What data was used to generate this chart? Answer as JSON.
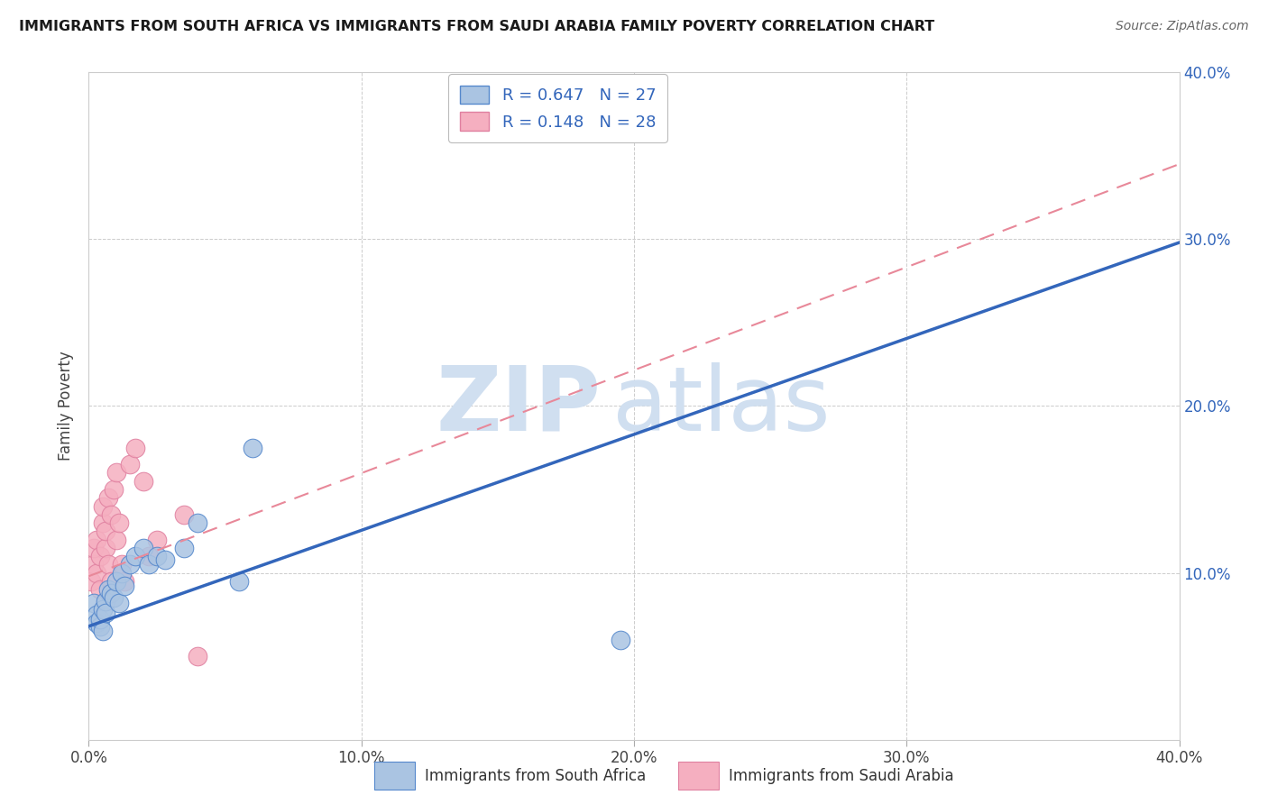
{
  "title": "IMMIGRANTS FROM SOUTH AFRICA VS IMMIGRANTS FROM SAUDI ARABIA FAMILY POVERTY CORRELATION CHART",
  "source": "Source: ZipAtlas.com",
  "ylabel": "Family Poverty",
  "xlim": [
    0.0,
    0.4
  ],
  "ylim": [
    0.0,
    0.4
  ],
  "xticks": [
    0.0,
    0.1,
    0.2,
    0.3,
    0.4
  ],
  "yticks": [
    0.0,
    0.1,
    0.2,
    0.3,
    0.4
  ],
  "xticklabels": [
    "0.0%",
    "10.0%",
    "20.0%",
    "30.0%",
    "40.0%"
  ],
  "yticklabels_right": [
    "",
    "10.0%",
    "20.0%",
    "30.0%",
    "40.0%"
  ],
  "series1_label": "Immigrants from South Africa",
  "series2_label": "Immigrants from Saudi Arabia",
  "series1_R": 0.647,
  "series1_N": 27,
  "series2_R": 0.148,
  "series2_N": 28,
  "series1_color": "#aac4e2",
  "series2_color": "#f5afc0",
  "series1_edge_color": "#5588cc",
  "series2_edge_color": "#e080a0",
  "series1_line_color": "#3366bb",
  "series2_line_color": "#e88899",
  "watermark_zip": "ZIP",
  "watermark_atlas": "atlas",
  "watermark_color": "#d0dff0",
  "series1_x": [
    0.002,
    0.003,
    0.003,
    0.004,
    0.004,
    0.005,
    0.005,
    0.006,
    0.006,
    0.007,
    0.008,
    0.009,
    0.01,
    0.011,
    0.012,
    0.013,
    0.015,
    0.017,
    0.02,
    0.022,
    0.025,
    0.028,
    0.035,
    0.04,
    0.055,
    0.06,
    0.195
  ],
  "series1_y": [
    0.082,
    0.075,
    0.07,
    0.068,
    0.072,
    0.078,
    0.065,
    0.083,
    0.076,
    0.09,
    0.088,
    0.085,
    0.095,
    0.082,
    0.1,
    0.092,
    0.105,
    0.11,
    0.115,
    0.105,
    0.11,
    0.108,
    0.115,
    0.13,
    0.095,
    0.175,
    0.06
  ],
  "series2_x": [
    0.001,
    0.002,
    0.002,
    0.003,
    0.003,
    0.004,
    0.004,
    0.005,
    0.005,
    0.006,
    0.006,
    0.007,
    0.007,
    0.008,
    0.008,
    0.009,
    0.01,
    0.01,
    0.011,
    0.012,
    0.013,
    0.015,
    0.017,
    0.02,
    0.022,
    0.025,
    0.035,
    0.04
  ],
  "series2_y": [
    0.095,
    0.105,
    0.115,
    0.1,
    0.12,
    0.09,
    0.11,
    0.13,
    0.14,
    0.115,
    0.125,
    0.145,
    0.105,
    0.135,
    0.095,
    0.15,
    0.16,
    0.12,
    0.13,
    0.105,
    0.095,
    0.165,
    0.175,
    0.155,
    0.11,
    0.12,
    0.135,
    0.05
  ],
  "blue_line_x0": 0.0,
  "blue_line_y0": 0.068,
  "blue_line_x1": 0.4,
  "blue_line_y1": 0.298,
  "pink_line_x0": 0.0,
  "pink_line_y0": 0.098,
  "pink_line_x1": 0.4,
  "pink_line_y1": 0.345,
  "background_color": "#ffffff",
  "grid_color": "#cccccc"
}
